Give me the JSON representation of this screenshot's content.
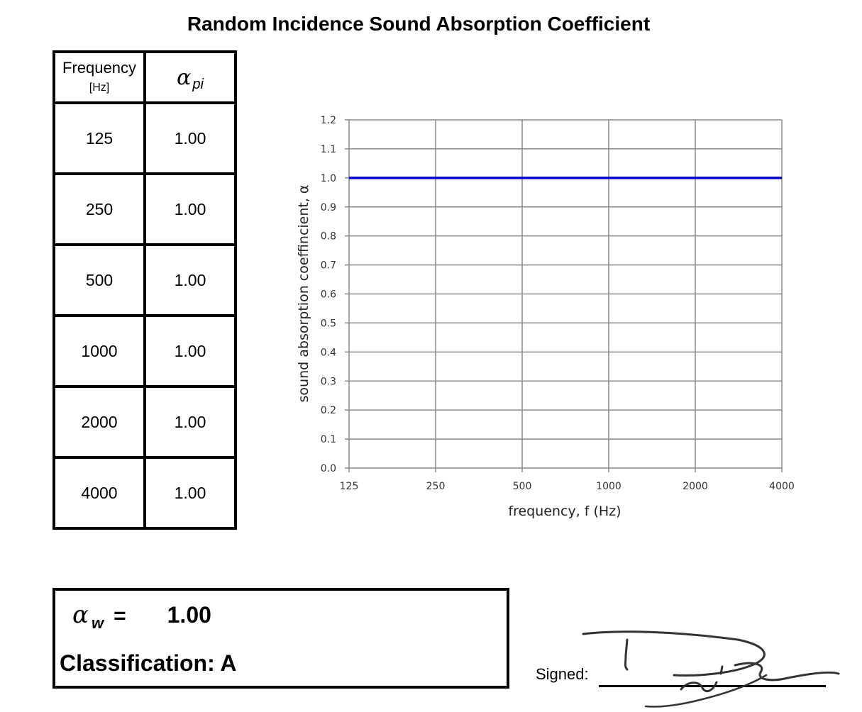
{
  "title": "Random Incidence Sound Absorption Coefficient",
  "table": {
    "header_frequency": "Frequency",
    "header_unit": "[Hz]",
    "header_alpha_symbol": "α",
    "header_alpha_sub": "pi",
    "rows": [
      {
        "frequency": "125",
        "alpha": "1.00"
      },
      {
        "frequency": "250",
        "alpha": "1.00"
      },
      {
        "frequency": "500",
        "alpha": "1.00"
      },
      {
        "frequency": "1000",
        "alpha": "1.00"
      },
      {
        "frequency": "2000",
        "alpha": "1.00"
      },
      {
        "frequency": "4000",
        "alpha": "1.00"
      }
    ]
  },
  "chart_data": {
    "type": "line",
    "title": "",
    "xlabel": "frequency, f (Hz)",
    "ylabel": "sound absorption coeffincient, α",
    "categories": [
      "125",
      "250",
      "500",
      "1000",
      "2000",
      "4000"
    ],
    "series": [
      {
        "values": [
          1.0,
          1.0,
          1.0,
          1.0,
          1.0,
          1.0
        ],
        "color": "#0000cc"
      }
    ],
    "ylim": [
      0,
      1.2
    ],
    "yticks": [
      "0.0",
      "0.1",
      "0.2",
      "0.3",
      "0.4",
      "0.5",
      "0.6",
      "0.7",
      "0.8",
      "0.9",
      "1.0",
      "1.1",
      "1.2"
    ],
    "grid": true,
    "legend": "none",
    "grid_color": "#888888"
  },
  "result": {
    "alpha_symbol": "α",
    "alpha_sub": "w",
    "equals": "=",
    "alpha_w_value": "1.00",
    "classification": "Classification: A"
  },
  "signature": {
    "label": "Signed:"
  }
}
